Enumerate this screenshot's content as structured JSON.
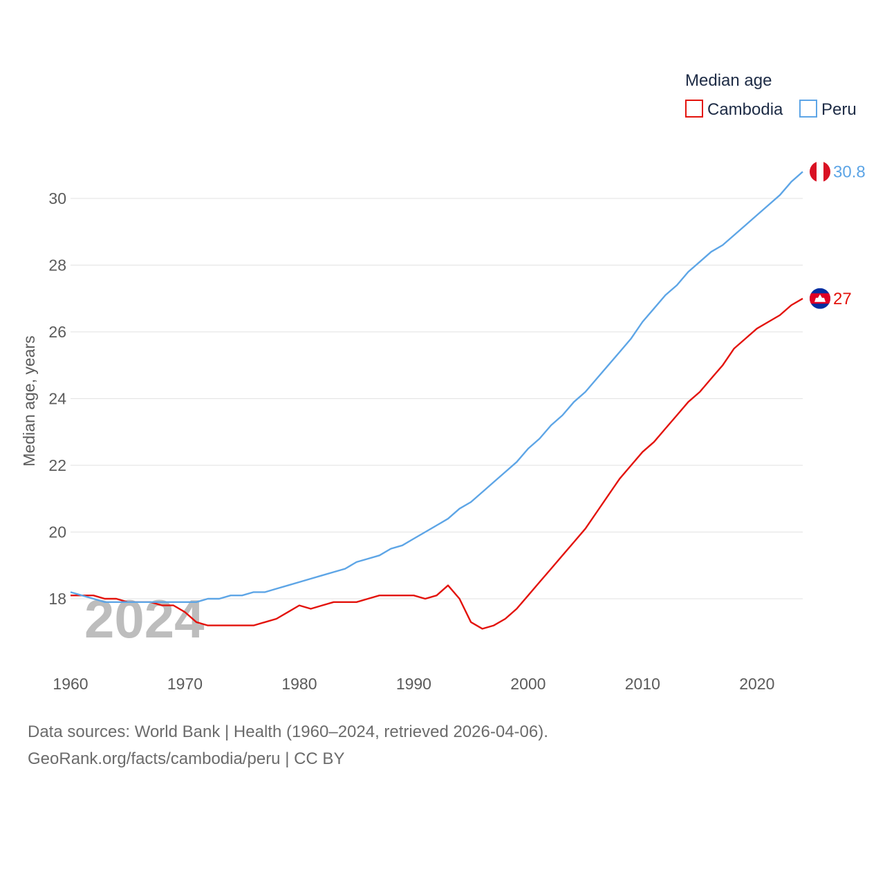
{
  "colors": {
    "cambodia": "#e3120b",
    "peru": "#5da5e6",
    "grid": "#e6e6e6",
    "axis_text": "#5b5b5b"
  },
  "chart_data": {
    "type": "line",
    "title": "",
    "watermark_year": "2024",
    "legend_title": "Median age",
    "xlabel": "",
    "ylabel": "Median age, years",
    "xlim": [
      1960,
      2024
    ],
    "ylim": [
      16.2,
      31.3
    ],
    "x_ticks": [
      1960,
      1970,
      1980,
      1990,
      2000,
      2010,
      2020
    ],
    "y_ticks": [
      18,
      20,
      22,
      24,
      26,
      28,
      30
    ],
    "x": [
      1960,
      1961,
      1962,
      1963,
      1964,
      1965,
      1966,
      1967,
      1968,
      1969,
      1970,
      1971,
      1972,
      1973,
      1974,
      1975,
      1976,
      1977,
      1978,
      1979,
      1980,
      1981,
      1982,
      1983,
      1984,
      1985,
      1986,
      1987,
      1988,
      1989,
      1990,
      1991,
      1992,
      1993,
      1994,
      1995,
      1996,
      1997,
      1998,
      1999,
      2000,
      2001,
      2002,
      2003,
      2004,
      2005,
      2006,
      2007,
      2008,
      2009,
      2010,
      2011,
      2012,
      2013,
      2014,
      2015,
      2016,
      2017,
      2018,
      2019,
      2020,
      2021,
      2022,
      2023,
      2024
    ],
    "series": [
      {
        "name": "Cambodia",
        "color": "#e3120b",
        "end_label": "27",
        "flag": "cambodia-flag",
        "values": [
          18.1,
          18.1,
          18.1,
          18.0,
          18.0,
          17.9,
          17.9,
          17.9,
          17.8,
          17.8,
          17.6,
          17.3,
          17.2,
          17.2,
          17.2,
          17.2,
          17.2,
          17.3,
          17.4,
          17.6,
          17.8,
          17.7,
          17.8,
          17.9,
          17.9,
          17.9,
          18.0,
          18.1,
          18.1,
          18.1,
          18.1,
          18.0,
          18.1,
          18.4,
          18.0,
          17.3,
          17.1,
          17.2,
          17.4,
          17.7,
          18.1,
          18.5,
          18.9,
          19.3,
          19.7,
          20.1,
          20.6,
          21.1,
          21.6,
          22.0,
          22.4,
          22.7,
          23.1,
          23.5,
          23.9,
          24.2,
          24.6,
          25.0,
          25.5,
          25.8,
          26.1,
          26.3,
          26.5,
          26.8,
          27.0
        ]
      },
      {
        "name": "Peru",
        "color": "#5da5e6",
        "end_label": "30.8",
        "flag": "peru-flag",
        "values": [
          18.2,
          18.1,
          18.0,
          17.9,
          17.9,
          17.9,
          17.9,
          17.9,
          17.9,
          17.9,
          17.9,
          17.9,
          18.0,
          18.0,
          18.1,
          18.1,
          18.2,
          18.2,
          18.3,
          18.4,
          18.5,
          18.6,
          18.7,
          18.8,
          18.9,
          19.1,
          19.2,
          19.3,
          19.5,
          19.6,
          19.8,
          20.0,
          20.2,
          20.4,
          20.7,
          20.9,
          21.2,
          21.5,
          21.8,
          22.1,
          22.5,
          22.8,
          23.2,
          23.5,
          23.9,
          24.2,
          24.6,
          25.0,
          25.4,
          25.8,
          26.3,
          26.7,
          27.1,
          27.4,
          27.8,
          28.1,
          28.4,
          28.6,
          28.9,
          29.2,
          29.5,
          29.8,
          30.1,
          30.5,
          30.8
        ]
      }
    ]
  },
  "footer": {
    "line1": "Data sources: World Bank | Health (1960–2024, retrieved 2026-04-06).",
    "line2": "GeoRank.org/facts/cambodia/peru | CC BY"
  }
}
